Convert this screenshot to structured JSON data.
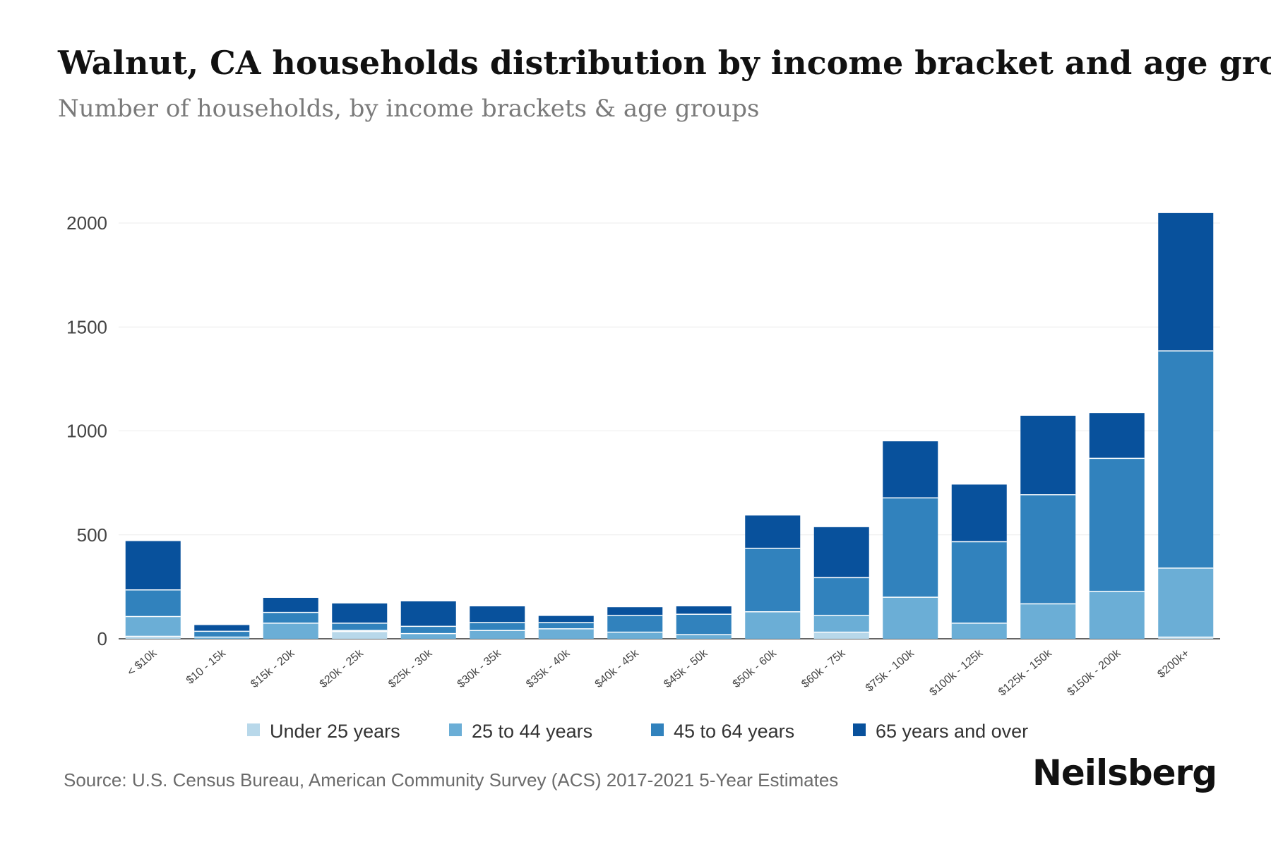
{
  "header": {
    "title": "Walnut, CA households distribution by income bracket and age group",
    "subtitle": "Number of households, by income brackets & age groups"
  },
  "footer": {
    "source": "Source: U.S. Census Bureau, American Community Survey (ACS) 2017-2021 5-Year Estimates",
    "brand": "Neilsberg"
  },
  "chart_data": {
    "type": "bar",
    "stacked": true,
    "title": "Walnut, CA households distribution by income bracket and age group",
    "subtitle": "Number of households, by income brackets & age groups",
    "xlabel": "",
    "ylabel": "",
    "ylim": [
      0,
      2050
    ],
    "yticks": [
      0,
      500,
      1000,
      1500,
      2000
    ],
    "grid": true,
    "legend_position": "bottom-center",
    "categories": [
      "< $10k",
      "$10 - 15k",
      "$15k - 20k",
      "$20k - 25k",
      "$25k - 30k",
      "$30k - 35k",
      "$35k - 40k",
      "$40k - 45k",
      "$45k - 50k",
      "$50k - 60k",
      "$60k - 75k",
      "$75k - 100k",
      "$100k - 125k",
      "$125k - 150k",
      "$150k - 200k",
      "$200k+"
    ],
    "series": [
      {
        "name": "Under 25 years",
        "color": "#b8d8ea",
        "values": [
          12,
          0,
          0,
          35,
          0,
          0,
          0,
          0,
          0,
          0,
          32,
          0,
          0,
          0,
          0,
          8
        ]
      },
      {
        "name": "25 to 44 years",
        "color": "#6baed6",
        "values": [
          95,
          8,
          75,
          5,
          25,
          40,
          48,
          32,
          20,
          130,
          80,
          200,
          75,
          168,
          228,
          332
        ]
      },
      {
        "name": "45 to 64 years",
        "color": "#3182bd",
        "values": [
          128,
          28,
          52,
          35,
          35,
          38,
          30,
          80,
          98,
          305,
          182,
          478,
          392,
          525,
          640,
          1045
        ]
      },
      {
        "name": "65 years and over",
        "color": "#08519c",
        "values": [
          235,
          30,
          70,
          95,
          120,
          78,
          32,
          40,
          38,
          158,
          243,
          272,
          275,
          380,
          218,
          663
        ]
      }
    ]
  }
}
